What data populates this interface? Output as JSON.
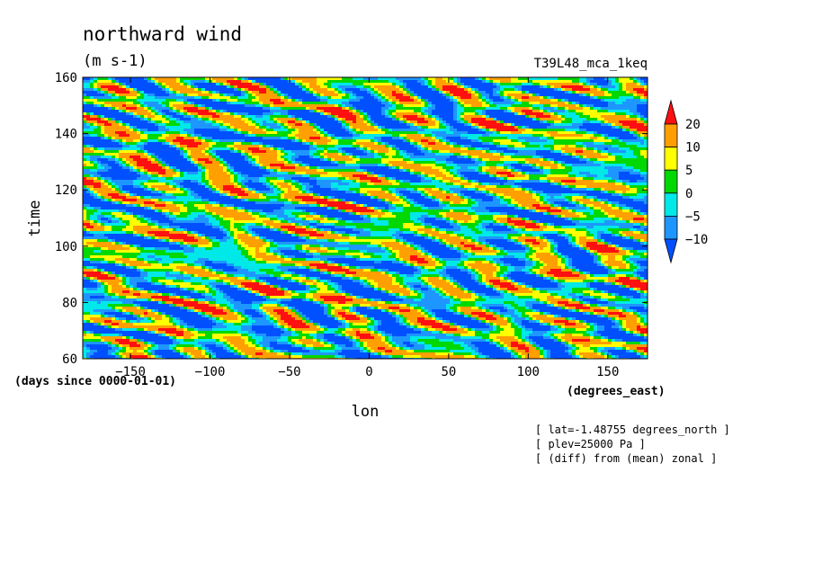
{
  "chart_data": {
    "type": "heatmap",
    "title": "northward wind",
    "subtitle": "(m s-1)",
    "experiment": "T39L48_mca_1keq",
    "xlabel": "lon",
    "x_units": "(degrees_east)",
    "ylabel": "time",
    "y_units": "(days since 0000-01-01)",
    "xlim": [
      -180,
      175
    ],
    "ylim": [
      60,
      160
    ],
    "x_ticks": [
      -150,
      -100,
      -50,
      0,
      50,
      100,
      150
    ],
    "y_ticks": [
      60,
      80,
      100,
      120,
      140,
      160
    ],
    "colorbar": {
      "levels": [
        -10,
        -5,
        0,
        5,
        10,
        20
      ],
      "labels": [
        "20",
        "10",
        "5",
        "0",
        "-5",
        "-10"
      ],
      "colors": [
        "#0050ff",
        "#1e96ff",
        "#00e8e8",
        "#00d800",
        "#ffff00",
        "#ffa000",
        "#ff1010"
      ]
    },
    "annotations": [
      "[ lat=-1.48755 degrees_north ]",
      "[ plev=25000 Pa ]",
      "[ (diff) from (mean) zonal ]"
    ]
  }
}
